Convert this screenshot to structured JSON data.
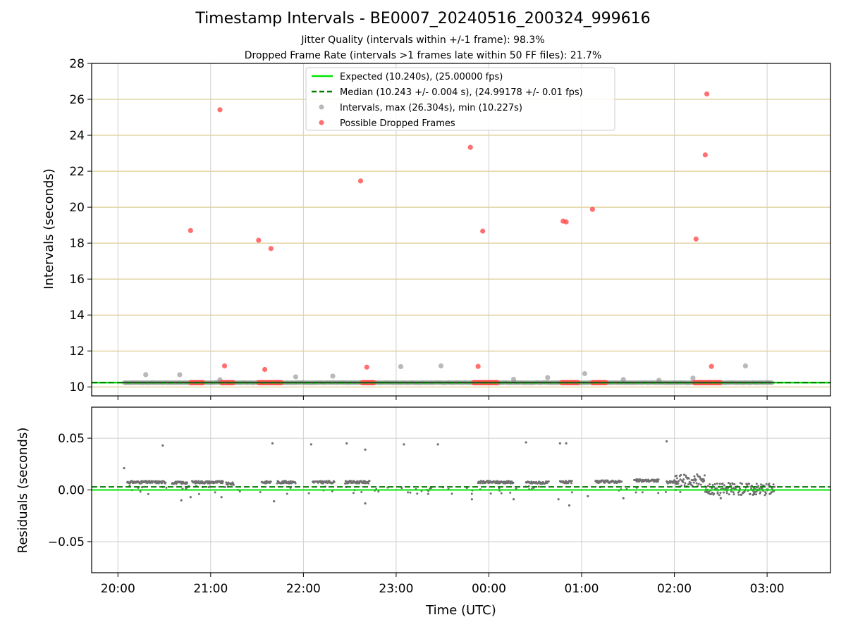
{
  "chart_data": [
    {
      "type": "scatter",
      "title": "Timestamp Intervals - BE0007_20240516_200324_999616",
      "subtitles": [
        "Jitter Quality (intervals within +/-1 frame): 98.3%",
        "Dropped Frame Rate (intervals >1 frames late within 50 FF files): 21.7%"
      ],
      "xlabel": "",
      "ylabel": "Intervals (seconds)",
      "ylim": [
        9.5,
        28
      ],
      "yticks": [
        10,
        12,
        14,
        16,
        18,
        20,
        22,
        24,
        26,
        28
      ],
      "xlim_minutes_from_2000": [
        -17,
        461
      ],
      "grid": true,
      "legend_position": "upper-center",
      "reference_lines": [
        {
          "name": "Expected (10.240s), (25.00000 fps)",
          "value": 10.24,
          "color": "#00e600",
          "style": "solid"
        },
        {
          "name": "Median (10.243 +/- 0.004 s), (24.99178 +/- 0.01 fps)",
          "value": 10.243,
          "color": "#007a00",
          "style": "dashed"
        }
      ],
      "series": [
        {
          "name": "Intervals, max (26.304s), min (10.227s)",
          "color": "#808080",
          "baseline": 10.24,
          "range": [
            "20:04",
            "03:04"
          ],
          "points": [
            {
              "t": "20:18",
              "y": 10.68
            },
            {
              "t": "20:40",
              "y": 10.68
            },
            {
              "t": "21:06",
              "y": 10.4
            },
            {
              "t": "21:55",
              "y": 10.56
            },
            {
              "t": "22:19",
              "y": 10.6
            },
            {
              "t": "23:03",
              "y": 11.13
            },
            {
              "t": "23:29",
              "y": 11.17
            },
            {
              "t": "00:16",
              "y": 10.42
            },
            {
              "t": "00:38",
              "y": 10.52
            },
            {
              "t": "01:02",
              "y": 10.74
            },
            {
              "t": "01:27",
              "y": 10.41
            },
            {
              "t": "01:50",
              "y": 10.37
            },
            {
              "t": "02:12",
              "y": 10.49
            },
            {
              "t": "02:46",
              "y": 11.17
            }
          ]
        },
        {
          "name": "Possible Dropped Frames",
          "color": "#ff4040",
          "clusters": [
            [
              "20:47",
              "20:55"
            ],
            [
              "21:07",
              "21:15"
            ],
            [
              "21:31",
              "21:46"
            ],
            [
              "22:38",
              "22:46"
            ],
            [
              "23:50",
              "00:06"
            ],
            [
              "00:47",
              "00:58"
            ],
            [
              "01:07",
              "01:16"
            ],
            [
              "02:13",
              "02:30"
            ]
          ],
          "points": [
            {
              "t": "20:47",
              "y": 18.7
            },
            {
              "t": "21:06",
              "y": 25.42
            },
            {
              "t": "21:09",
              "y": 11.17
            },
            {
              "t": "21:31",
              "y": 18.16
            },
            {
              "t": "21:35",
              "y": 10.97
            },
            {
              "t": "21:39",
              "y": 17.7
            },
            {
              "t": "22:37",
              "y": 21.46
            },
            {
              "t": "22:41",
              "y": 11.1
            },
            {
              "t": "23:48",
              "y": 23.33
            },
            {
              "t": "23:53",
              "y": 11.14
            },
            {
              "t": "23:56",
              "y": 18.67
            },
            {
              "t": "00:48",
              "y": 19.22
            },
            {
              "t": "00:50",
              "y": 19.18
            },
            {
              "t": "01:07",
              "y": 19.88
            },
            {
              "t": "02:14",
              "y": 18.23
            },
            {
              "t": "02:20",
              "y": 22.91
            },
            {
              "t": "02:21",
              "y": 26.3
            },
            {
              "t": "02:24",
              "y": 11.14
            }
          ]
        }
      ]
    },
    {
      "type": "scatter",
      "xlabel": "Time (UTC)",
      "ylabel": "Residuals (seconds)",
      "ylim": [
        -0.08,
        0.08
      ],
      "yticks": [
        -0.05,
        0.0,
        0.05
      ],
      "ytick_labels": [
        "−0.05",
        "0.00",
        "0.05"
      ],
      "xticks": [
        "20:00",
        "21:00",
        "22:00",
        "23:00",
        "00:00",
        "01:00",
        "02:00",
        "03:00"
      ],
      "grid": true,
      "reference_lines": [
        {
          "value": 0.0,
          "color": "#00e600",
          "style": "solid"
        },
        {
          "value": 0.003,
          "color": "#007a00",
          "style": "dashed"
        }
      ],
      "series": [
        {
          "color": "#707070",
          "segments": [
            {
              "start": "20:06",
              "end": "20:31",
              "y": 0.0075
            },
            {
              "start": "20:35",
              "end": "20:45",
              "y": 0.007
            },
            {
              "start": "20:48",
              "end": "21:08",
              "y": 0.0075
            },
            {
              "start": "21:10",
              "end": "21:15",
              "y": 0.006
            },
            {
              "start": "21:33",
              "end": "21:39",
              "y": 0.0075
            },
            {
              "start": "21:43",
              "end": "21:55",
              "y": 0.0075
            },
            {
              "start": "22:06",
              "end": "22:20",
              "y": 0.0075
            },
            {
              "start": "22:27",
              "end": "22:43",
              "y": 0.0075
            },
            {
              "start": "23:53",
              "end": "00:16",
              "y": 0.0075
            },
            {
              "start": "00:24",
              "end": "00:39",
              "y": 0.007
            },
            {
              "start": "00:46",
              "end": "00:54",
              "y": 0.0075
            },
            {
              "start": "01:09",
              "end": "01:26",
              "y": 0.008
            },
            {
              "start": "01:34",
              "end": "01:50",
              "y": 0.009
            },
            {
              "start": "01:55",
              "end": "02:02",
              "y": 0.0075
            },
            {
              "start": "02:00",
              "end": "02:20",
              "y": 0.009
            },
            {
              "start": "02:20",
              "end": "03:05",
              "y": 0.001
            }
          ],
          "outliers": [
            {
              "t": "20:04",
              "y": 0.021
            },
            {
              "t": "20:29",
              "y": 0.043
            },
            {
              "t": "21:40",
              "y": 0.045
            },
            {
              "t": "22:05",
              "y": 0.044
            },
            {
              "t": "22:28",
              "y": 0.045
            },
            {
              "t": "22:40",
              "y": 0.039
            },
            {
              "t": "23:05",
              "y": 0.044
            },
            {
              "t": "23:27",
              "y": 0.044
            },
            {
              "t": "00:24",
              "y": 0.046
            },
            {
              "t": "00:46",
              "y": 0.045
            },
            {
              "t": "00:50",
              "y": 0.045
            },
            {
              "t": "01:55",
              "y": 0.047
            },
            {
              "t": "20:41",
              "y": -0.01
            },
            {
              "t": "20:47",
              "y": -0.007
            },
            {
              "t": "21:07",
              "y": -0.007
            },
            {
              "t": "21:41",
              "y": -0.011
            },
            {
              "t": "22:40",
              "y": -0.013
            },
            {
              "t": "23:49",
              "y": -0.009
            },
            {
              "t": "00:16",
              "y": -0.009
            },
            {
              "t": "00:45",
              "y": -0.009
            },
            {
              "t": "00:52",
              "y": -0.015
            },
            {
              "t": "01:04",
              "y": -0.006
            },
            {
              "t": "01:27",
              "y": -0.008
            },
            {
              "t": "02:30",
              "y": -0.008
            }
          ]
        }
      ]
    }
  ]
}
